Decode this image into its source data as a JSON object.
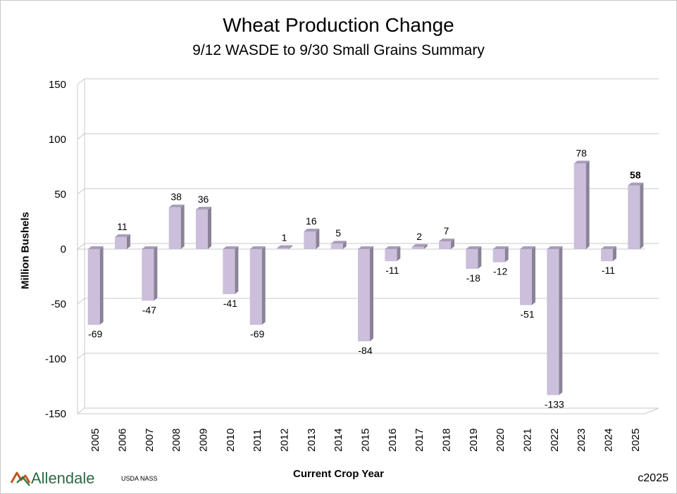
{
  "chart_data": {
    "type": "bar",
    "title": "Wheat Production Change",
    "subtitle": "9/12 WASDE to 9/30 Small Grains Summary",
    "xlabel": "Current Crop Year",
    "ylabel": "Million Bushels",
    "ylim": [
      -150,
      150
    ],
    "yticks": [
      150,
      100,
      50,
      0,
      -50,
      -100,
      -150
    ],
    "grid": true,
    "bar_color": "#cbbfdb",
    "bar_side_color": "#8c8298",
    "bar_top_color": "#a89cb8",
    "categories": [
      "2005",
      "2006",
      "2007",
      "2008",
      "2009",
      "2010",
      "2011",
      "2012",
      "2013",
      "2014",
      "2015",
      "2016",
      "2017",
      "2018",
      "2019",
      "2020",
      "2021",
      "2022",
      "2023",
      "2024",
      "2025"
    ],
    "values": [
      -69,
      11,
      -47,
      38,
      36,
      -41,
      -69,
      1,
      16,
      5,
      -84,
      -11,
      2,
      7,
      -18,
      -12,
      -51,
      -133,
      78,
      -11,
      58
    ],
    "bold_labels": [
      "2025"
    ]
  },
  "footer": {
    "logo_text": "Allendale",
    "source": "USDA NASS",
    "copyright": "c2025"
  }
}
